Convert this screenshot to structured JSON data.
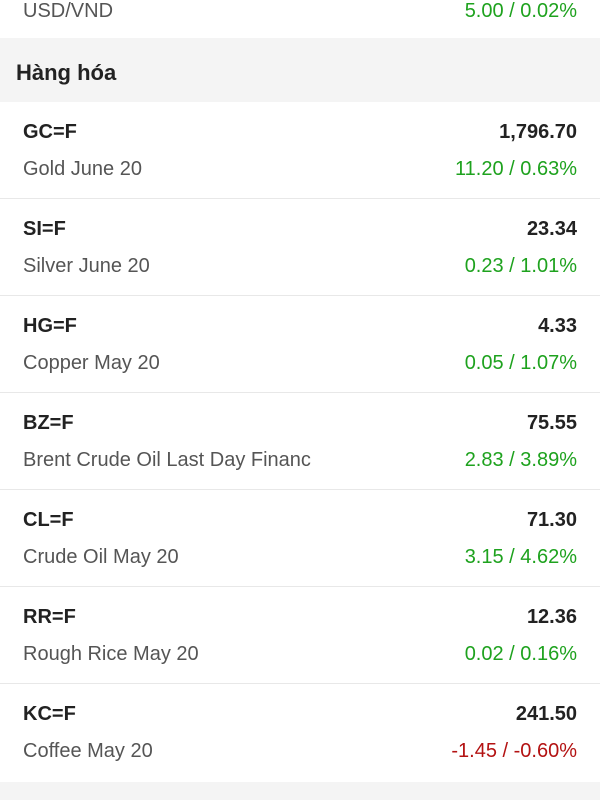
{
  "top_row": {
    "symbol": "USD/VND",
    "change": "5.00 / 0.02%"
  },
  "section": {
    "title": "Hàng hóa"
  },
  "items": [
    {
      "symbol": "GC=F",
      "price": "1,796.70",
      "name": "Gold June 20",
      "change": "11.20 / 0.63%",
      "direction": "up"
    },
    {
      "symbol": "SI=F",
      "price": "23.34",
      "name": "Silver June 20",
      "change": "0.23 / 1.01%",
      "direction": "up"
    },
    {
      "symbol": "HG=F",
      "price": "4.33",
      "name": "Copper May 20",
      "change": "0.05 / 1.07%",
      "direction": "up"
    },
    {
      "symbol": "BZ=F",
      "price": "75.55",
      "name": "Brent Crude Oil Last Day Financ",
      "change": "2.83 / 3.89%",
      "direction": "up"
    },
    {
      "symbol": "CL=F",
      "price": "71.30",
      "name": "Crude Oil May 20",
      "change": "3.15 / 4.62%",
      "direction": "up"
    },
    {
      "symbol": "RR=F",
      "price": "12.36",
      "name": "Rough Rice May 20",
      "change": "0.02 / 0.16%",
      "direction": "up"
    },
    {
      "symbol": "KC=F",
      "price": "241.50",
      "name": "Coffee May 20",
      "change": "-1.45 / -0.60%",
      "direction": "down"
    }
  ],
  "colors": {
    "up": "#1ea21e",
    "down": "#b31212"
  }
}
